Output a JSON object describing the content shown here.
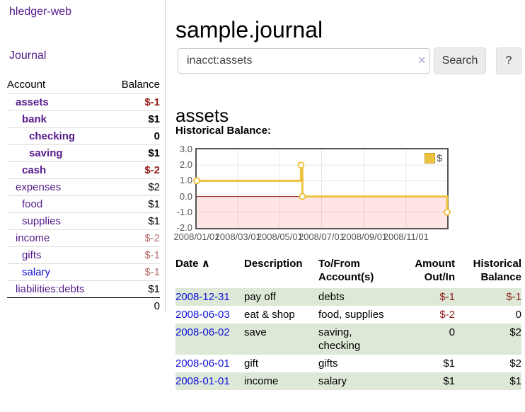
{
  "colors": {
    "link_purple": "#551a8b",
    "link_blue": "#1111dd",
    "negative_strong": "#941b1c",
    "negative_soft": "#b76e6e",
    "row_stripe_green": "#dde9d6",
    "chart_gold": "#edc240",
    "chart_border": "#545454",
    "negative_region_pink": "rgba(255,0,0,0.10)",
    "zero_line_red": "#8b1a1a"
  },
  "sidebar": {
    "app_title": "hledger-web",
    "journal_label": "Journal",
    "accounts_table": {
      "headers": {
        "account": "Account",
        "balance": "Balance"
      },
      "rows": [
        {
          "name": "assets",
          "depth": 0,
          "bold": true,
          "link": "purple",
          "balance": "$-1",
          "balance_style": "neg-strong"
        },
        {
          "name": "bank",
          "depth": 1,
          "bold": true,
          "link": "purple",
          "balance": "$1",
          "balance_style": "pos"
        },
        {
          "name": "checking",
          "depth": 2,
          "bold": true,
          "link": "purple",
          "balance": "0",
          "balance_style": "pos"
        },
        {
          "name": "saving",
          "depth": 2,
          "bold": true,
          "link": "purple",
          "balance": "$1",
          "balance_style": "pos"
        },
        {
          "name": "cash",
          "depth": 1,
          "bold": true,
          "link": "purple",
          "balance": "$-2",
          "balance_style": "neg-strong"
        },
        {
          "name": "expenses",
          "depth": 0,
          "bold": false,
          "link": "purple",
          "balance": "$2",
          "balance_style": "pos"
        },
        {
          "name": "food",
          "depth": 1,
          "bold": false,
          "link": "purple",
          "balance": "$1",
          "balance_style": "pos"
        },
        {
          "name": "supplies",
          "depth": 1,
          "bold": false,
          "link": "purple",
          "balance": "$1",
          "balance_style": "pos"
        },
        {
          "name": "income",
          "depth": 0,
          "bold": false,
          "link": "purple",
          "balance": "$-2",
          "balance_style": "neg-soft"
        },
        {
          "name": "gifts",
          "depth": 1,
          "bold": false,
          "link": "purple",
          "balance": "$-1",
          "balance_style": "neg-soft"
        },
        {
          "name": "salary",
          "depth": 1,
          "bold": false,
          "link": "blue",
          "balance": "$-1",
          "balance_style": "neg-soft"
        },
        {
          "name": "liabilities:debts",
          "depth": 0,
          "bold": false,
          "link": "purple",
          "balance": "$1",
          "balance_style": "pos"
        }
      ],
      "total": "0"
    }
  },
  "main": {
    "title": "sample.journal",
    "search": {
      "value": "inacct:assets",
      "clear_icon": "×",
      "search_label": "Search",
      "help_label": "?"
    },
    "account_heading": "assets",
    "chart_label": "Historical Balance:"
  },
  "chart_data": {
    "type": "line",
    "style": "step",
    "title": "Historical Balance",
    "series": [
      {
        "name": "$",
        "color": "#edc240",
        "points": [
          [
            "2008-01-01",
            1
          ],
          [
            "2008-06-01",
            2
          ],
          [
            "2008-06-03",
            0
          ],
          [
            "2008-12-31",
            -1
          ]
        ]
      }
    ],
    "x_range": [
      "2008-01-01",
      "2008-12-31"
    ],
    "x_ticks": [
      "2008/01/01",
      "2008/03/01",
      "2008/05/01",
      "2008/07/01",
      "2008/09/01",
      "2008/11/01"
    ],
    "y_ticks": [
      "3.0",
      "2.0",
      "1.0",
      "0.0",
      "-1.0",
      "-2.0"
    ],
    "ylim": [
      -2,
      3
    ],
    "grid": true,
    "legend": {
      "label": "$",
      "position": "top-right"
    },
    "negative_region_shaded": true
  },
  "register_table": {
    "headers": {
      "date": "Date",
      "sort_icon": "∧",
      "description": "Description",
      "accounts": "To/From Account(s)",
      "amount": "Amount Out/In",
      "balance": "Historical Balance"
    },
    "rows": [
      {
        "date": "2008-12-31",
        "description": "pay off",
        "accounts": "debts",
        "amount": "$-1",
        "amount_neg": true,
        "balance": "$-1",
        "balance_neg": true
      },
      {
        "date": "2008-06-03",
        "description": "eat & shop",
        "accounts": "food, supplies",
        "amount": "$-2",
        "amount_neg": true,
        "balance": "0",
        "balance_neg": false
      },
      {
        "date": "2008-06-02",
        "description": "save",
        "accounts": "saving, checking",
        "amount": "0",
        "amount_neg": false,
        "balance": "$2",
        "balance_neg": false
      },
      {
        "date": "2008-06-01",
        "description": "gift",
        "accounts": "gifts",
        "amount": "$1",
        "amount_neg": false,
        "balance": "$2",
        "balance_neg": false
      },
      {
        "date": "2008-01-01",
        "description": "income",
        "accounts": "salary",
        "amount": "$1",
        "amount_neg": false,
        "balance": "$1",
        "balance_neg": false
      }
    ]
  }
}
